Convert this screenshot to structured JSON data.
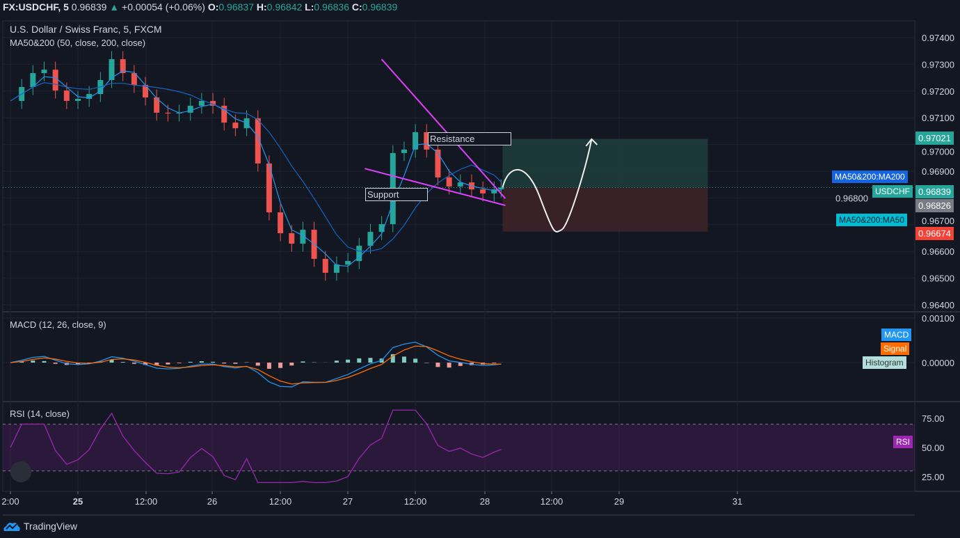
{
  "header": {
    "symbol": "FX:USDCHF, 5",
    "last": "0.96839",
    "change": "+0.00054 (+0.06%)",
    "o_label": "O:",
    "o": "0.96837",
    "h_label": "H:",
    "h": "0.96842",
    "l_label": "L:",
    "l": "0.96836",
    "c_label": "C:",
    "c": "0.96839"
  },
  "legend": {
    "title": "U.S. Dollar / Swiss Franc, 5, FXCM",
    "ma": "MA50&200 (50, close, 200, close)",
    "macd": "MACD (12, 26, close, 9)",
    "rsi": "RSI (14, close)"
  },
  "tags": {
    "ma200": "MA50&200:MA200",
    "usdchf": "USDCHF",
    "ma50": "MA50&200:MA50",
    "macd": "MACD",
    "signal": "Signal",
    "histogram": "Histogram",
    "rsi": "RSI"
  },
  "price_labels": {
    "target": "0.97021",
    "last": "0.96839",
    "ma": "0.96826",
    "stop": "0.96674"
  },
  "brand": "TradingView",
  "colors": {
    "background": "#131722",
    "up": "#26a69a",
    "down": "#ef5350",
    "ma50": "#2196f3",
    "ma200": "#1565c0",
    "trendline": "#e040fb",
    "rsi": "#9c27b0",
    "macd": "#2196f3",
    "signal": "#ff6d00",
    "target_zone": "#1d3b3a",
    "stop_zone": "#3d2228"
  },
  "chart_data": {
    "type": "candlestick",
    "price_axis": {
      "ticks": [
        "0.97400",
        "0.97300",
        "0.97200",
        "0.97100",
        "0.97000",
        "0.96900",
        "0.96800",
        "0.96700",
        "0.96600",
        "0.96500",
        "0.96400"
      ],
      "range": [
        0.9639,
        0.9749
      ]
    },
    "time_axis": {
      "ticks": [
        "2:00",
        "25",
        "12:00",
        "26",
        "12:00",
        "27",
        "12:00",
        "28",
        "12:00",
        "29",
        "31"
      ]
    },
    "series": {
      "time": [
        "24 12:00",
        "24 14:00",
        "24 16:00",
        "24 18:00",
        "24 20:00",
        "24 22:00",
        "25 00:00",
        "25 02:00",
        "25 04:00",
        "25 06:00",
        "25 08:00",
        "25 10:00",
        "25 12:00",
        "25 14:00",
        "25 16:00",
        "25 18:00",
        "25 20:00",
        "25 22:00",
        "26 00:00",
        "26 02:00",
        "26 04:00",
        "26 06:00",
        "26 08:00",
        "26 10:00",
        "26 12:00",
        "26 14:00",
        "26 16:00",
        "26 18:00",
        "26 20:00",
        "26 22:00",
        "27 00:00",
        "27 02:00",
        "27 04:00",
        "27 06:00",
        "27 08:00",
        "27 10:00",
        "27 12:00",
        "27 14:00",
        "27 16:00",
        "27 18:00",
        "27 20:00",
        "27 22:00",
        "28 00:00",
        "28 02:00",
        "28 03:15"
      ],
      "close": [
        0.97163,
        0.97215,
        0.97267,
        0.9728,
        0.97202,
        0.97163,
        0.97171,
        0.97189,
        0.97241,
        0.97319,
        0.97267,
        0.97223,
        0.97176,
        0.97119,
        0.97116,
        0.97119,
        0.97145,
        0.97163,
        0.97145,
        0.97082,
        0.97061,
        0.97098,
        0.96929,
        0.96746,
        0.96668,
        0.96629,
        0.96681,
        0.96572,
        0.9652,
        0.96551,
        0.96564,
        0.96621,
        0.96673,
        0.96702,
        0.96968,
        0.96981,
        0.97046,
        0.96981,
        0.96877,
        0.96843,
        0.96858,
        0.96832,
        0.96817,
        0.96832,
        0.96839
      ]
    },
    "annotations": {
      "resistance": {
        "label": "Resistance",
        "from": [
          "27 06:00",
          0.97319
        ],
        "to": [
          "28 04:00",
          0.96798
        ]
      },
      "support": {
        "label": "Support",
        "from": [
          "27 03:00",
          0.9691
        ],
        "to": [
          "28 04:00",
          0.96772
        ]
      },
      "long_position": {
        "from": "28 03:30",
        "to": "29 16:00",
        "entry": 0.96839,
        "target": 0.97021,
        "stop": 0.96674
      },
      "projected_path": [
        [
          "28 03:30",
          0.96839
        ],
        [
          "28 06:20",
          0.96921
        ],
        [
          "28 14:00",
          0.96681
        ],
        [
          "28 19:20",
          0.9702
        ]
      ]
    },
    "macd_axis": {
      "ticks": [
        "0.00100",
        "0.00000"
      ]
    },
    "rsi_axis": {
      "ticks": [
        "75.00",
        "50.00",
        "25.00"
      ],
      "bands": [
        70,
        30
      ]
    }
  }
}
